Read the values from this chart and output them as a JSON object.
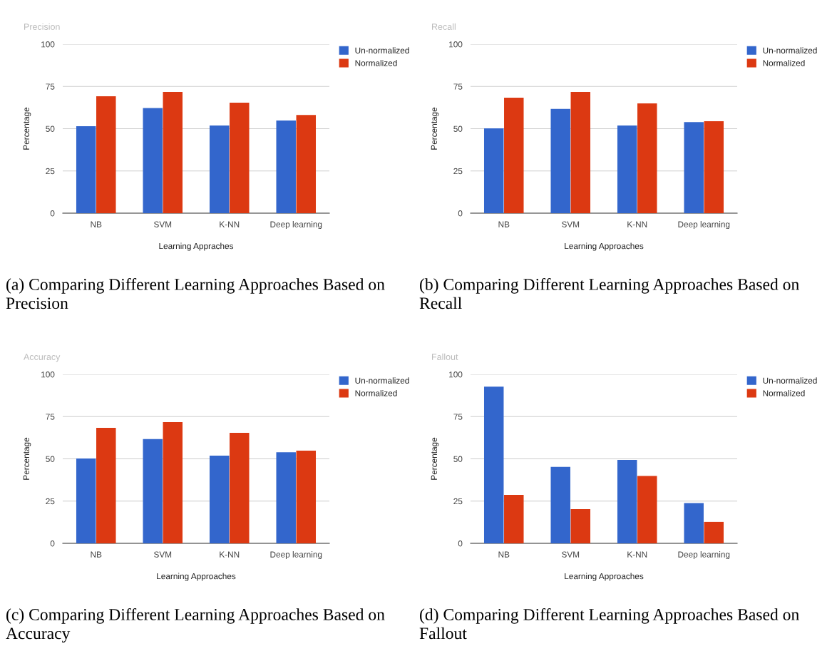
{
  "chart_data": [
    {
      "type": "bar",
      "title": "Precision",
      "xlabel": "Learning Appraches",
      "ylabel": "Percentage",
      "categories": [
        "NB",
        "SVM",
        "K-NN",
        "Deep learning"
      ],
      "series": [
        {
          "name": "Un-normalized",
          "color": "#3366cc",
          "values": [
            51.5,
            62.2,
            51.9,
            54.9
          ]
        },
        {
          "name": "Normalized",
          "color": "#dc3912",
          "values": [
            69.2,
            71.7,
            65.4,
            58.1
          ]
        }
      ],
      "ylim": [
        0,
        100
      ],
      "yticks": [
        0,
        25,
        50,
        75,
        100
      ],
      "grid": "y",
      "legend": "top right",
      "annotations": [
        "(a) Comparing Different Learning Approaches Based on Precision"
      ]
    },
    {
      "type": "bar",
      "title": "Recall",
      "xlabel": "Learning Approaches",
      "ylabel": "Percentage",
      "categories": [
        "NB",
        "SVM",
        "K-NN",
        "Deep learning"
      ],
      "series": [
        {
          "name": "Un-normalized",
          "color": "#3366cc",
          "values": [
            50.2,
            61.7,
            51.9,
            53.9
          ]
        },
        {
          "name": "Normalized",
          "color": "#dc3912",
          "values": [
            68.4,
            71.7,
            65.0,
            54.4
          ]
        }
      ],
      "ylim": [
        0,
        100
      ],
      "yticks": [
        0,
        25,
        50,
        75,
        100
      ],
      "grid": "y",
      "legend": "top right",
      "annotations": [
        "(b) Comparing Different Learning Approaches Based on Recall"
      ]
    },
    {
      "type": "bar",
      "title": "Accuracy",
      "xlabel": "Learning Approaches",
      "ylabel": "Percentage",
      "categories": [
        "NB",
        "SVM",
        "K-NN",
        "Deep learning"
      ],
      "series": [
        {
          "name": "Un-normalized",
          "color": "#3366cc",
          "values": [
            50.2,
            61.7,
            51.9,
            53.9
          ]
        },
        {
          "name": "Normalized",
          "color": "#dc3912",
          "values": [
            68.4,
            71.7,
            65.4,
            54.9
          ]
        }
      ],
      "ylim": [
        0,
        100
      ],
      "yticks": [
        0,
        25,
        50,
        75,
        100
      ],
      "grid": "y",
      "legend": "top right",
      "annotations": [
        "(c) Comparing Different Learning Approaches Based on Accuracy"
      ]
    },
    {
      "type": "bar",
      "title": "Fallout",
      "xlabel": "Learning Approaches",
      "ylabel": "Percentage",
      "categories": [
        "NB",
        "SVM",
        "K-NN",
        "Deep learning"
      ],
      "series": [
        {
          "name": "Un-normalized",
          "color": "#3366cc",
          "values": [
            92.7,
            45.3,
            49.4,
            23.8
          ]
        },
        {
          "name": "Normalized",
          "color": "#dc3912",
          "values": [
            28.7,
            20.3,
            39.9,
            12.7
          ]
        }
      ],
      "ylim": [
        0,
        100
      ],
      "yticks": [
        0,
        25,
        50,
        75,
        100
      ],
      "grid": "y",
      "legend": "top right",
      "annotations": [
        "(d) Comparing Different Learning Approaches Based on Fallout"
      ]
    }
  ]
}
